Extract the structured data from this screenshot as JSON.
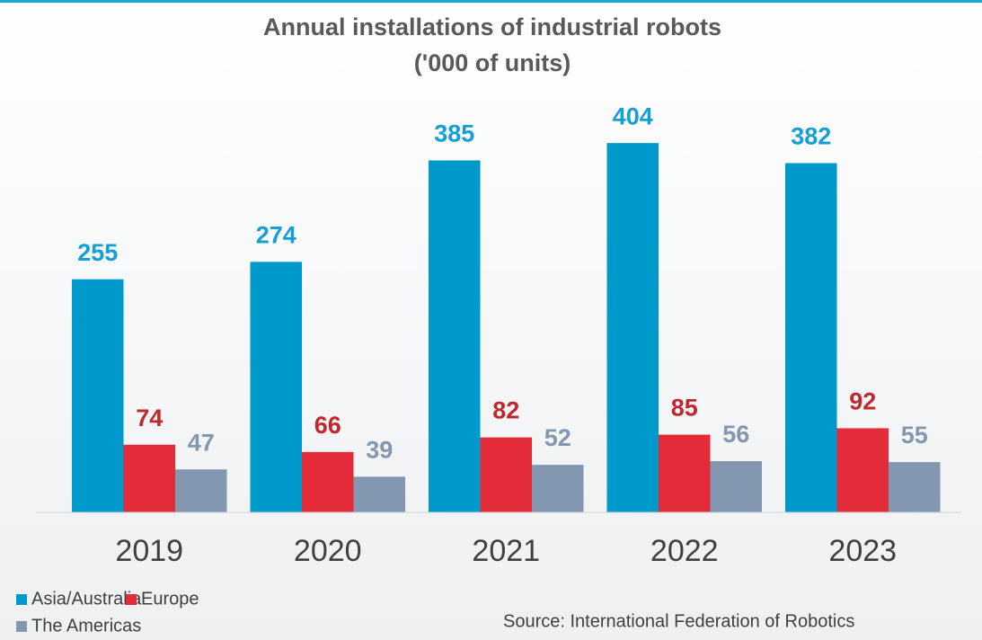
{
  "chart_data": {
    "type": "bar",
    "title": "Annual installations of industrial robots",
    "subtitle": "('000 of units)",
    "categories": [
      "2019",
      "2020",
      "2021",
      "2022",
      "2023"
    ],
    "series": [
      {
        "name": "Asia/Australia",
        "color": "#0099cc",
        "values": [
          255,
          274,
          385,
          404,
          382
        ]
      },
      {
        "name": "Europe",
        "color": "#e32b3a",
        "values": [
          74,
          66,
          82,
          85,
          92
        ]
      },
      {
        "name": "The Americas",
        "color": "#8497b0",
        "values": [
          47,
          39,
          52,
          56,
          55
        ]
      }
    ],
    "label_colors": [
      "#149fd6",
      "#c0282f",
      "#8497b0"
    ],
    "source": "Source: International Federation of Robotics"
  }
}
